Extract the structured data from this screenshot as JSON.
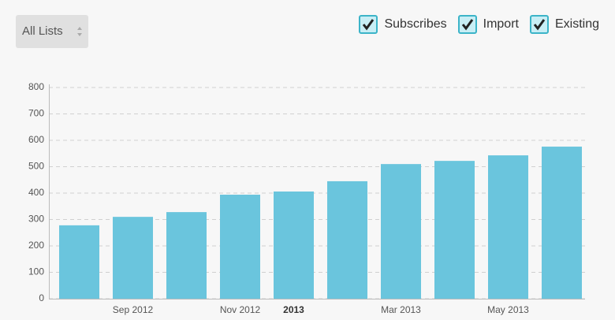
{
  "controls": {
    "dropdown": "All Lists",
    "toggles": [
      "Subscribes",
      "Import",
      "Existing"
    ]
  },
  "chart_data": {
    "type": "bar",
    "categories": [
      null,
      "Sep 2012",
      null,
      "Nov 2012",
      "2013",
      null,
      "Mar 2013",
      null,
      "May 2013",
      null
    ],
    "values": [
      278,
      310,
      328,
      394,
      406,
      445,
      510,
      522,
      543,
      576
    ],
    "color": "#6ac5dd",
    "ylim": [
      0,
      800
    ],
    "yticks": [
      0,
      100,
      200,
      300,
      400,
      500,
      600,
      700,
      800
    ],
    "grid": true
  }
}
